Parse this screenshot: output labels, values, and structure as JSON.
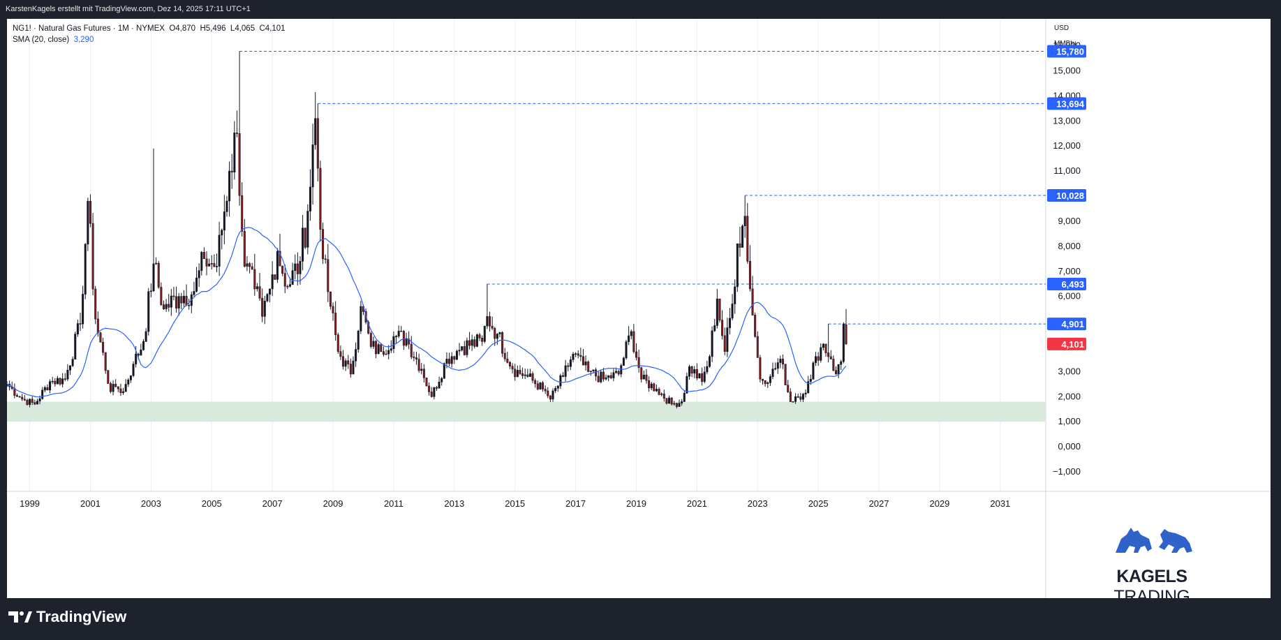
{
  "header": {
    "attribution": "KarstenKagels erstellt mit TradingView.com, Dez 14, 2025 17:11 UTC+1"
  },
  "legend": {
    "symbol_line": "NG1! · Natural Gas Futures · 1M · NYMEX",
    "open": "O4,870",
    "high": "H5,496",
    "low": "L4,065",
    "close": "C4,101",
    "sma_label": "SMA (20, close)",
    "sma_value": "3,290"
  },
  "axis": {
    "currency": "USD",
    "unit": "MMBtu"
  },
  "colors": {
    "up": "#131722",
    "down": "#8b1a1a",
    "sma": "#2962ff",
    "zone": "#d5e8d9",
    "level_line": "#2962ff",
    "last_price": "#f23645"
  },
  "chart_data": {
    "type": "candlestick",
    "interval": "monthly",
    "x_range": [
      "1998-04",
      "2032-07"
    ],
    "ylim": [
      -1.5,
      16.6
    ],
    "y_ticks": [
      -1,
      0,
      1,
      2,
      3,
      4,
      5,
      6,
      7,
      8,
      9,
      10,
      11,
      12,
      13,
      14,
      15,
      16
    ],
    "y_tick_labels": [
      "−1,000",
      "0,000",
      "1,000",
      "2,000",
      "3,000",
      "4,000",
      "5,000",
      "6,000",
      "7,000",
      "8,000",
      "9,000",
      "10,000",
      "11,000",
      "12,000",
      "13,000",
      "14,000",
      "15,000",
      "16,000"
    ],
    "x_ticks": [
      "1999",
      "2001",
      "2003",
      "2005",
      "2007",
      "2009",
      "2011",
      "2013",
      "2015",
      "2017",
      "2019",
      "2021",
      "2023",
      "2025",
      "2027",
      "2029",
      "2031"
    ],
    "grid": "vertical",
    "anchors": [
      [
        "1998-04",
        2.5
      ],
      [
        "1998-10",
        1.9
      ],
      [
        "1999-03",
        1.7
      ],
      [
        "1999-09",
        2.6
      ],
      [
        "2000-03",
        2.7
      ],
      [
        "2000-09",
        4.9
      ],
      [
        "2000-12",
        9.8
      ],
      [
        "2001-03",
        5.1
      ],
      [
        "2001-09",
        2.2
      ],
      [
        "2001-11",
        2.4
      ],
      [
        "2002-02",
        2.2
      ],
      [
        "2002-06",
        3.3
      ],
      [
        "2002-10",
        4.2
      ],
      [
        "2003-02",
        7.3
      ],
      [
        "2003-06",
        5.5
      ],
      [
        "2003-12",
        6.0
      ],
      [
        "2004-06",
        6.2
      ],
      [
        "2004-10",
        7.5
      ],
      [
        "2005-03",
        7.2
      ],
      [
        "2005-08",
        11.0
      ],
      [
        "2005-11",
        12.5
      ],
      [
        "2006-02",
        7.2
      ],
      [
        "2006-06",
        6.3
      ],
      [
        "2006-09",
        5.2
      ],
      [
        "2006-12",
        6.3
      ],
      [
        "2007-03",
        7.8
      ],
      [
        "2007-07",
        6.4
      ],
      [
        "2007-12",
        7.4
      ],
      [
        "2008-03",
        9.4
      ],
      [
        "2008-06",
        13.1
      ],
      [
        "2008-09",
        7.5
      ],
      [
        "2008-12",
        5.6
      ],
      [
        "2009-03",
        3.8
      ],
      [
        "2009-08",
        2.9
      ],
      [
        "2009-12",
        5.6
      ],
      [
        "2010-04",
        4.0
      ],
      [
        "2010-08",
        3.8
      ],
      [
        "2011-01",
        4.4
      ],
      [
        "2011-06",
        4.3
      ],
      [
        "2011-12",
        3.1
      ],
      [
        "2012-04",
        2.0
      ],
      [
        "2012-10",
        3.5
      ],
      [
        "2013-04",
        4.0
      ],
      [
        "2013-12",
        4.2
      ],
      [
        "2014-02",
        5.2
      ],
      [
        "2014-06",
        4.5
      ],
      [
        "2014-12",
        3.1
      ],
      [
        "2015-06",
        2.8
      ],
      [
        "2015-12",
        2.3
      ],
      [
        "2016-03",
        1.9
      ],
      [
        "2016-08",
        2.8
      ],
      [
        "2016-12",
        3.7
      ],
      [
        "2017-06",
        3.0
      ],
      [
        "2017-12",
        2.7
      ],
      [
        "2018-06",
        2.9
      ],
      [
        "2018-11",
        4.6
      ],
      [
        "2019-03",
        2.7
      ],
      [
        "2019-09",
        2.3
      ],
      [
        "2020-03",
        1.7
      ],
      [
        "2020-07",
        1.8
      ],
      [
        "2020-10",
        3.2
      ],
      [
        "2021-03",
        2.6
      ],
      [
        "2021-06",
        3.6
      ],
      [
        "2021-09",
        5.9
      ],
      [
        "2021-12",
        3.8
      ],
      [
        "2022-03",
        5.7
      ],
      [
        "2022-05",
        8.1
      ],
      [
        "2022-08",
        9.2
      ],
      [
        "2022-10",
        6.3
      ],
      [
        "2022-12",
        4.4
      ],
      [
        "2023-02",
        2.7
      ],
      [
        "2023-06",
        2.8
      ],
      [
        "2023-10",
        3.5
      ],
      [
        "2024-02",
        1.8
      ],
      [
        "2024-04",
        2.0
      ],
      [
        "2024-07",
        2.1
      ],
      [
        "2024-10",
        2.7
      ],
      [
        "2024-12",
        3.6
      ],
      [
        "2025-03",
        4.1
      ],
      [
        "2025-06",
        3.5
      ],
      [
        "2025-08",
        2.9
      ],
      [
        "2025-10",
        3.4
      ],
      [
        "2025-11",
        4.9
      ],
      [
        "2025-12",
        4.1
      ]
    ],
    "last_candle": {
      "date": "2025-12",
      "open": 4.87,
      "high": 5.496,
      "low": 4.065,
      "close": 4.101
    },
    "sma_period": 20,
    "sma_last_value": 3.29,
    "support_zone": [
      1.0,
      1.8
    ],
    "levels": [
      {
        "value": 15.78,
        "label": "15,780",
        "from": "2005-12"
      },
      {
        "value": 13.694,
        "label": "13,694",
        "from": "2008-07"
      },
      {
        "value": 10.028,
        "label": "10,028",
        "from": "2022-08"
      },
      {
        "value": 6.493,
        "label": "6,493",
        "from": "2014-02"
      },
      {
        "value": 4.901,
        "label": "4,901",
        "from": "2025-05"
      }
    ],
    "last_price_label": "4,101"
  },
  "watermark": {
    "brand_bold": "KAGELS",
    "brand_light": "TRADING"
  },
  "footer": {
    "logo_text": "TradingView"
  }
}
